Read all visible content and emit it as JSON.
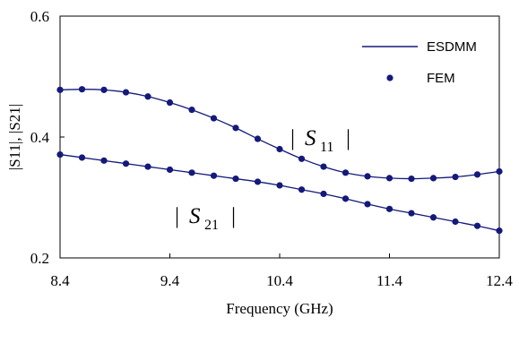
{
  "chart_data": {
    "type": "line",
    "title": "",
    "xlabel": "Frequency (GHz)",
    "ylabel": "|S11|, |S21|",
    "xlim": [
      8.4,
      12.4
    ],
    "ylim": [
      0.2,
      0.6
    ],
    "x_ticks": [
      "8.4",
      "9.4",
      "10.4",
      "11.4",
      "12.4"
    ],
    "y_ticks": [
      "0.2",
      "0.4",
      "0.6"
    ],
    "grid": false,
    "legend_position": "top-right",
    "legend": [
      {
        "label": "ESDMM",
        "marker": "line"
      },
      {
        "label": "FEM",
        "marker": "dot"
      }
    ],
    "color": "#14197a",
    "x": [
      8.4,
      8.6,
      8.8,
      9.0,
      9.2,
      9.4,
      9.6,
      9.8,
      10.0,
      10.2,
      10.4,
      10.6,
      10.8,
      11.0,
      11.2,
      11.4,
      11.6,
      11.8,
      12.0,
      12.2,
      12.4
    ],
    "series": [
      {
        "name": "|S11|",
        "values": [
          0.478,
          0.479,
          0.478,
          0.474,
          0.467,
          0.457,
          0.445,
          0.431,
          0.415,
          0.397,
          0.38,
          0.364,
          0.351,
          0.341,
          0.335,
          0.332,
          0.331,
          0.332,
          0.334,
          0.338,
          0.343
        ]
      },
      {
        "name": "|S21|",
        "values": [
          0.371,
          0.366,
          0.361,
          0.356,
          0.351,
          0.346,
          0.341,
          0.336,
          0.331,
          0.326,
          0.32,
          0.313,
          0.306,
          0.298,
          0.289,
          0.281,
          0.274,
          0.267,
          0.26,
          0.253,
          0.245
        ]
      }
    ],
    "annotations": [
      {
        "main": "S",
        "sub": "11",
        "bar": "|"
      },
      {
        "main": "S",
        "sub": "21",
        "bar": "|"
      }
    ]
  }
}
